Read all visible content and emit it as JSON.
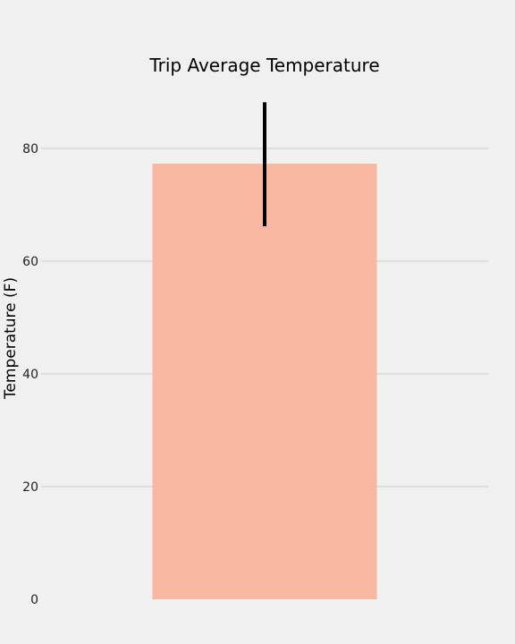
{
  "chart_data": {
    "type": "bar",
    "title": "Trip Average Temperature",
    "xlabel": "",
    "ylabel": "Temperature (F)",
    "categories": [
      ""
    ],
    "values": [
      77.3
    ],
    "error": [
      {
        "low": 66.2,
        "high": 88.2
      }
    ],
    "ylim": [
      0,
      90
    ],
    "yticks": [
      0,
      20,
      40,
      60,
      80
    ],
    "grid": true,
    "colors": {
      "background": "#f0f0f0",
      "bar": "#f7b7a0",
      "error_bar": "#000000",
      "grid": "#cbcbcb",
      "text": "#000000",
      "tick_text": "#222222"
    }
  }
}
